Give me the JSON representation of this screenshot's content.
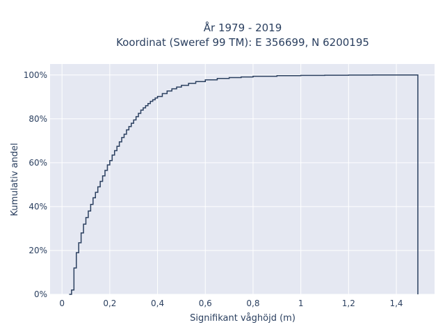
{
  "chart_data": {
    "type": "line",
    "subtype": "empirical-cdf-step",
    "title_line1": "År 1979 - 2019",
    "title_line2": "Koordinat (Sweref 99 TM): E 356699, N 6200195",
    "xlabel": "Signifikant våghöjd (m)",
    "ylabel": "Kumulativ andel",
    "xlim": [
      -0.05,
      1.56
    ],
    "ylim": [
      0,
      1.05
    ],
    "x_ticks": [
      0,
      0.2,
      0.4,
      0.6,
      0.8,
      1,
      1.2,
      1.4
    ],
    "x_tick_labels": [
      "0",
      "0,2",
      "0,4",
      "0,6",
      "0,8",
      "1",
      "1,2",
      "1,4"
    ],
    "y_ticks": [
      0,
      0.2,
      0.4,
      0.6,
      0.8,
      1
    ],
    "y_tick_labels": [
      "0%",
      "20%",
      "40%",
      "60%",
      "80%",
      "100%"
    ],
    "grid": true,
    "colors": {
      "background": "#e5e8f2",
      "grid": "#ffffff",
      "line": "#2a3f5f",
      "text": "#2a3f5f"
    },
    "series": [
      {
        "x": [
          0.03,
          0.04,
          0.05,
          0.06,
          0.07,
          0.08,
          0.09,
          0.1,
          0.11,
          0.12,
          0.13,
          0.14,
          0.15,
          0.16,
          0.17,
          0.18,
          0.19,
          0.2,
          0.21,
          0.22,
          0.23,
          0.24,
          0.25,
          0.26,
          0.27,
          0.28,
          0.29,
          0.3,
          0.31,
          0.32,
          0.33,
          0.34,
          0.35,
          0.36,
          0.37,
          0.38,
          0.39,
          0.4,
          0.42,
          0.44,
          0.46,
          0.48,
          0.5,
          0.53,
          0.56,
          0.6,
          0.65,
          0.7,
          0.75,
          0.8,
          0.9,
          1.0,
          1.1,
          1.2,
          1.3,
          1.49
        ],
        "y": [
          0.0,
          0.02,
          0.12,
          0.19,
          0.235,
          0.28,
          0.32,
          0.35,
          0.38,
          0.41,
          0.44,
          0.465,
          0.49,
          0.515,
          0.54,
          0.565,
          0.59,
          0.61,
          0.635,
          0.655,
          0.675,
          0.695,
          0.715,
          0.73,
          0.75,
          0.765,
          0.78,
          0.795,
          0.81,
          0.825,
          0.84,
          0.85,
          0.86,
          0.87,
          0.88,
          0.887,
          0.895,
          0.902,
          0.915,
          0.927,
          0.937,
          0.945,
          0.953,
          0.962,
          0.97,
          0.978,
          0.984,
          0.988,
          0.991,
          0.994,
          0.997,
          0.998,
          0.999,
          0.9995,
          1.0,
          1.0
        ]
      }
    ]
  }
}
